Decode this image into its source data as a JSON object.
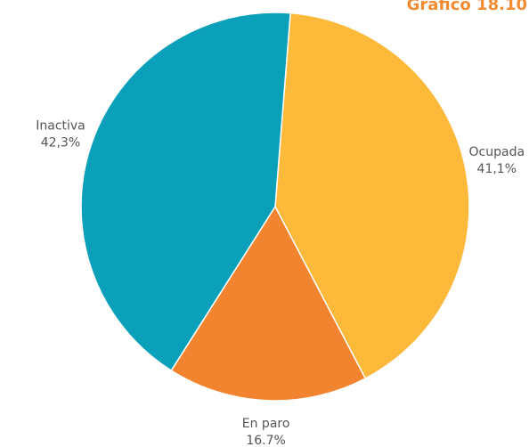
{
  "figure_label": "Gráfico 18.10",
  "chart_data": {
    "type": "pie",
    "title": "",
    "slices": [
      {
        "label": "Ocupada",
        "value": 41.1,
        "value_label": "41,1%",
        "color": "#fcb93a"
      },
      {
        "label": "En paro",
        "value": 16.7,
        "value_label": "16.7%",
        "color": "#f28430"
      },
      {
        "label": "Inactiva",
        "value": 42.3,
        "value_label": "42,3%",
        "color": "#0aa0b9"
      }
    ],
    "legend": "none",
    "start_angle": "just clockwise of 12 o'clock, slices proceed clockwise"
  }
}
